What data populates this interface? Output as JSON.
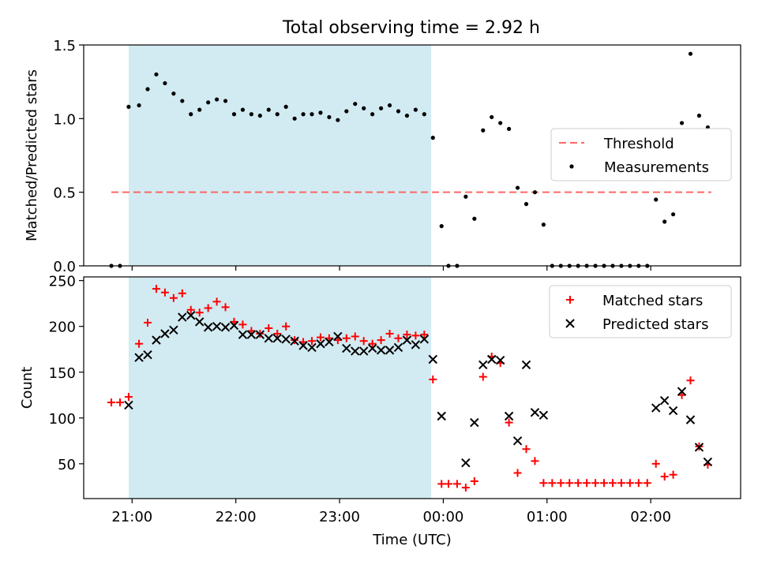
{
  "title": "Total observing time = 2.92 h",
  "colors": {
    "shade": "#add8e6",
    "threshold": "#ff6666",
    "matched": "#ff0000",
    "predicted": "#000000",
    "measurement": "#000000"
  },
  "chart_data": [
    {
      "type": "scatter",
      "panel": "top",
      "title": "Total observing time = 2.92 h",
      "ylabel": "Matched/Predicted stars",
      "xlabel": "",
      "x_axis": "time",
      "xlim": [
        "20:32",
        "02:52"
      ],
      "ylim": [
        0,
        1.5
      ],
      "yticks": [
        "0.0",
        "0.5",
        "1.0",
        "1.5"
      ],
      "xticks": [
        "21:00",
        "22:00",
        "23:00",
        "00:00",
        "01:00",
        "02:00"
      ],
      "shaded_interval": [
        "20:58",
        "23:53"
      ],
      "legend_position": "center-right",
      "legend": [
        "Threshold",
        "Measurements"
      ],
      "threshold": {
        "name": "Threshold",
        "y": 0.5,
        "x": [
          "20:48",
          "02:35"
        ]
      },
      "series": [
        {
          "name": "Measurements",
          "marker": "dot",
          "points": [
            [
              "20:48",
              0
            ],
            [
              "20:53",
              0
            ],
            [
              "20:58",
              1.08
            ],
            [
              "21:04",
              1.09
            ],
            [
              "21:09",
              1.2
            ],
            [
              "21:14",
              1.3
            ],
            [
              "21:19",
              1.24
            ],
            [
              "21:24",
              1.17
            ],
            [
              "21:29",
              1.12
            ],
            [
              "21:34",
              1.03
            ],
            [
              "21:39",
              1.06
            ],
            [
              "21:44",
              1.11
            ],
            [
              "21:49",
              1.13
            ],
            [
              "21:54",
              1.12
            ],
            [
              "21:59",
              1.03
            ],
            [
              "22:04",
              1.06
            ],
            [
              "22:09",
              1.03
            ],
            [
              "22:14",
              1.02
            ],
            [
              "22:19",
              1.06
            ],
            [
              "22:24",
              1.03
            ],
            [
              "22:29",
              1.08
            ],
            [
              "22:34",
              1.0
            ],
            [
              "22:39",
              1.03
            ],
            [
              "22:44",
              1.03
            ],
            [
              "22:49",
              1.04
            ],
            [
              "22:54",
              1.01
            ],
            [
              "22:59",
              0.99
            ],
            [
              "23:04",
              1.05
            ],
            [
              "23:09",
              1.1
            ],
            [
              "23:14",
              1.07
            ],
            [
              "23:19",
              1.03
            ],
            [
              "23:24",
              1.07
            ],
            [
              "23:29",
              1.09
            ],
            [
              "23:34",
              1.05
            ],
            [
              "23:39",
              1.02
            ],
            [
              "23:44",
              1.06
            ],
            [
              "23:49",
              1.03
            ],
            [
              "23:54",
              0.87
            ],
            [
              "23:59",
              0.27
            ],
            [
              "00:03",
              0
            ],
            [
              "00:08",
              0
            ],
            [
              "00:13",
              0.47
            ],
            [
              "00:18",
              0.32
            ],
            [
              "00:23",
              0.92
            ],
            [
              "00:28",
              1.01
            ],
            [
              "00:33",
              0.97
            ],
            [
              "00:38",
              0.93
            ],
            [
              "00:43",
              0.53
            ],
            [
              "00:48",
              0.42
            ],
            [
              "00:53",
              0.5
            ],
            [
              "00:58",
              0.28
            ],
            [
              "01:03",
              0
            ],
            [
              "01:08",
              0
            ],
            [
              "01:13",
              0
            ],
            [
              "01:18",
              0
            ],
            [
              "01:23",
              0
            ],
            [
              "01:28",
              0
            ],
            [
              "01:33",
              0
            ],
            [
              "01:38",
              0
            ],
            [
              "01:43",
              0
            ],
            [
              "01:48",
              0
            ],
            [
              "01:53",
              0
            ],
            [
              "01:58",
              0
            ],
            [
              "02:03",
              0.45
            ],
            [
              "02:08",
              0.3
            ],
            [
              "02:13",
              0.35
            ],
            [
              "02:18",
              0.97
            ],
            [
              "02:23",
              1.44
            ],
            [
              "02:28",
              1.02
            ],
            [
              "02:33",
              0.94
            ]
          ]
        }
      ]
    },
    {
      "type": "scatter",
      "panel": "bottom",
      "ylabel": "Count",
      "xlabel": "Time (UTC)",
      "x_axis": "time",
      "xlim": [
        "20:32",
        "02:52"
      ],
      "ylim": [
        12,
        254
      ],
      "yticks": [
        "50",
        "100",
        "150",
        "200",
        "250"
      ],
      "xticks": [
        "21:00",
        "22:00",
        "23:00",
        "00:00",
        "01:00",
        "02:00"
      ],
      "shaded_interval": [
        "20:58",
        "23:53"
      ],
      "legend_position": "top-right",
      "legend": [
        "Matched stars",
        "Predicted stars"
      ],
      "series": [
        {
          "name": "Matched stars",
          "marker": "plus",
          "points": [
            [
              "20:48",
              117
            ],
            [
              "20:53",
              117
            ],
            [
              "20:58",
              123
            ],
            [
              "21:04",
              181
            ],
            [
              "21:09",
              204
            ],
            [
              "21:14",
              241
            ],
            [
              "21:19",
              237
            ],
            [
              "21:24",
              231
            ],
            [
              "21:29",
              236
            ],
            [
              "21:34",
              218
            ],
            [
              "21:39",
              215
            ],
            [
              "21:44",
              220
            ],
            [
              "21:49",
              227
            ],
            [
              "21:54",
              221
            ],
            [
              "21:59",
              205
            ],
            [
              "22:04",
              202
            ],
            [
              "22:09",
              195
            ],
            [
              "22:14",
              192
            ],
            [
              "22:19",
              198
            ],
            [
              "22:24",
              192
            ],
            [
              "22:29",
              200
            ],
            [
              "22:34",
              185
            ],
            [
              "22:39",
              183
            ],
            [
              "22:44",
              184
            ],
            [
              "22:49",
              188
            ],
            [
              "22:54",
              187
            ],
            [
              "22:59",
              185
            ],
            [
              "23:04",
              187
            ],
            [
              "23:09",
              189
            ],
            [
              "23:14",
              184
            ],
            [
              "23:19",
              181
            ],
            [
              "23:24",
              185
            ],
            [
              "23:29",
              192
            ],
            [
              "23:34",
              187
            ],
            [
              "23:39",
              191
            ],
            [
              "23:44",
              190
            ],
            [
              "23:49",
              191
            ],
            [
              "23:54",
              142
            ],
            [
              "23:59",
              28
            ],
            [
              "00:03",
              28
            ],
            [
              "00:08",
              28
            ],
            [
              "00:13",
              24
            ],
            [
              "00:18",
              31
            ],
            [
              "00:23",
              145
            ],
            [
              "00:28",
              167
            ],
            [
              "00:33",
              160
            ],
            [
              "00:38",
              95
            ],
            [
              "00:43",
              40
            ],
            [
              "00:48",
              66
            ],
            [
              "00:53",
              53
            ],
            [
              "00:58",
              29
            ],
            [
              "01:03",
              29
            ],
            [
              "01:08",
              29
            ],
            [
              "01:13",
              29
            ],
            [
              "01:18",
              29
            ],
            [
              "01:23",
              29
            ],
            [
              "01:28",
              29
            ],
            [
              "01:33",
              29
            ],
            [
              "01:38",
              29
            ],
            [
              "01:43",
              29
            ],
            [
              "01:48",
              29
            ],
            [
              "01:53",
              29
            ],
            [
              "01:58",
              29
            ],
            [
              "02:03",
              50
            ],
            [
              "02:08",
              36
            ],
            [
              "02:13",
              38
            ],
            [
              "02:18",
              125
            ],
            [
              "02:23",
              141
            ],
            [
              "02:28",
              69
            ],
            [
              "02:33",
              49
            ]
          ]
        },
        {
          "name": "Predicted stars",
          "marker": "x",
          "points": [
            [
              "20:58",
              114
            ],
            [
              "21:04",
              166
            ],
            [
              "21:09",
              169
            ],
            [
              "21:14",
              185
            ],
            [
              "21:19",
              192
            ],
            [
              "21:24",
              196
            ],
            [
              "21:29",
              210
            ],
            [
              "21:34",
              212
            ],
            [
              "21:39",
              205
            ],
            [
              "21:44",
              199
            ],
            [
              "21:49",
              200
            ],
            [
              "21:54",
              199
            ],
            [
              "21:59",
              201
            ],
            [
              "22:04",
              191
            ],
            [
              "22:09",
              191
            ],
            [
              "22:14",
              191
            ],
            [
              "22:19",
              187
            ],
            [
              "22:24",
              187
            ],
            [
              "22:29",
              186
            ],
            [
              "22:34",
              184
            ],
            [
              "22:39",
              179
            ],
            [
              "22:44",
              177
            ],
            [
              "22:49",
              181
            ],
            [
              "22:54",
              183
            ],
            [
              "22:59",
              189
            ],
            [
              "23:04",
              176
            ],
            [
              "23:09",
              173
            ],
            [
              "23:14",
              173
            ],
            [
              "23:19",
              176
            ],
            [
              "23:24",
              174
            ],
            [
              "23:29",
              174
            ],
            [
              "23:34",
              177
            ],
            [
              "23:39",
              185
            ],
            [
              "23:44",
              180
            ],
            [
              "23:49",
              186
            ],
            [
              "23:54",
              164
            ],
            [
              "23:59",
              102
            ],
            [
              "00:13",
              51
            ],
            [
              "00:18",
              95
            ],
            [
              "00:23",
              158
            ],
            [
              "00:28",
              164
            ],
            [
              "00:33",
              163
            ],
            [
              "00:38",
              102
            ],
            [
              "00:43",
              75
            ],
            [
              "00:48",
              158
            ],
            [
              "00:53",
              106
            ],
            [
              "00:58",
              103
            ],
            [
              "02:03",
              111
            ],
            [
              "02:08",
              119
            ],
            [
              "02:13",
              108
            ],
            [
              "02:18",
              129
            ],
            [
              "02:23",
              98
            ],
            [
              "02:28",
              68
            ],
            [
              "02:33",
              52
            ]
          ]
        }
      ]
    }
  ]
}
